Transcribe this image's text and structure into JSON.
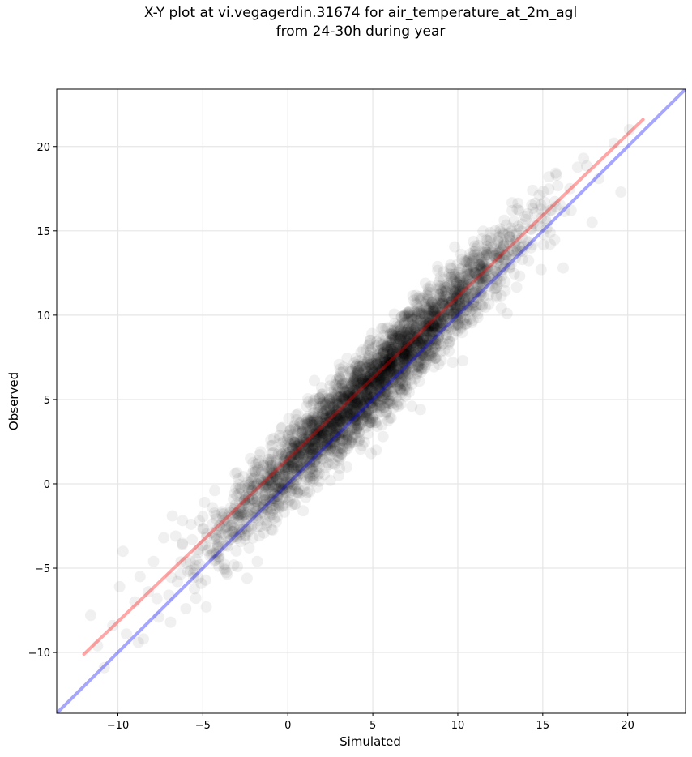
{
  "chart_data": {
    "type": "scatter",
    "title": "X-Y plot at vi.vegagerdin.31674 for air_temperature_at_2m_agl",
    "subtitle": "from 24-30h during year",
    "xlabel": "Simulated",
    "ylabel": "Observed",
    "xlim": [
      -13.6,
      23.4
    ],
    "ylim": [
      -13.6,
      23.4
    ],
    "xticks": [
      -10,
      -5,
      0,
      5,
      10,
      15,
      20
    ],
    "yticks": [
      -10,
      -5,
      0,
      5,
      10,
      15,
      20
    ],
    "xtick_labels": [
      "−10",
      "−5",
      "0",
      "5",
      "10",
      "15",
      "20"
    ],
    "ytick_labels": [
      "−10",
      "−5",
      "0",
      "5",
      "10",
      "15",
      "20"
    ],
    "grid": true,
    "legend": "none",
    "series": [
      {
        "kind": "points",
        "color": "#000000",
        "alpha": 0.06,
        "relation": "observed approx. simulated + 1.0, spread about 1.2",
        "x": [
          -11.6,
          -11.2,
          -10.8,
          -10.3,
          -9.9,
          -9.5,
          -9.0,
          -8.7,
          -8.5,
          -8.2,
          -7.9,
          -7.6,
          -7.3,
          -7.0,
          -6.8,
          -6.5,
          -6.2,
          -6.0,
          -5.7,
          -5.4,
          -5.1,
          -4.9,
          -4.6,
          -4.3,
          -4.0,
          -3.7,
          -3.4,
          -3.1,
          -2.8,
          -2.5,
          -2.2,
          -1.9,
          -1.6,
          -1.3,
          -1.0,
          -0.7,
          -0.4,
          -0.1,
          0.2,
          0.5,
          0.8,
          1.1,
          1.4,
          1.7,
          2.0,
          2.3,
          2.6,
          2.9,
          3.2,
          3.5,
          3.8,
          4.1,
          4.4,
          4.7,
          5.0,
          5.3,
          5.6,
          5.9,
          6.2,
          6.5,
          6.8,
          7.1,
          7.4,
          7.7,
          8.0,
          8.3,
          8.6,
          8.9,
          9.2,
          9.5,
          9.8,
          10.1,
          10.4,
          10.7,
          11.0,
          11.4,
          11.8,
          12.2,
          12.7,
          13.2,
          13.8,
          14.4,
          15.1,
          15.8,
          16.6,
          17.4,
          18.3,
          19.2,
          20.1,
          -8.8,
          -6.9,
          -4.8,
          -2.4,
          0.9,
          3.0,
          5.6,
          7.8,
          9.7,
          12.9,
          14.9,
          17.9,
          -6.6,
          -3.2,
          1.8,
          4.3,
          6.9,
          8.9,
          11.9,
          2.5,
          5.2,
          7.3,
          10.3,
          -0.5,
          3.7,
          6.1,
          8.4,
          13.6,
          -1.8,
          0.4,
          4.9,
          16.2,
          19.6,
          -9.7,
          -5.2,
          -2.9,
          1.5,
          2.8,
          4.0,
          5.8,
          6.4,
          7.6,
          8.1,
          9.0,
          10.0,
          10.9,
          11.5,
          -0.9,
          0.0,
          1.2,
          2.1,
          3.4,
          4.6,
          5.5,
          6.7,
          7.9,
          8.7,
          9.4,
          10.6,
          -3.6,
          -1.4,
          0.7,
          2.4,
          3.9,
          5.0,
          6.0,
          7.0,
          8.2,
          9.6,
          11.2,
          12.4
        ],
        "y": [
          -7.8,
          -9.6,
          -10.9,
          -8.4,
          -6.1,
          -8.9,
          -7.0,
          -5.5,
          -9.2,
          -6.4,
          -4.6,
          -7.9,
          -3.2,
          -6.6,
          -1.9,
          -5.8,
          -3.6,
          -7.4,
          -2.4,
          -4.5,
          -5.9,
          -1.1,
          -3.8,
          -0.4,
          -2.5,
          -5.1,
          -1.7,
          0.6,
          -3.0,
          -0.7,
          1.5,
          -1.9,
          1.9,
          -0.8,
          2.6,
          0.7,
          3.3,
          -0.5,
          1.3,
          3.8,
          2.0,
          4.6,
          0.9,
          3.1,
          5.3,
          2.4,
          4.1,
          6.2,
          3.0,
          5.6,
          3.9,
          6.7,
          4.8,
          6.3,
          5.1,
          7.5,
          5.9,
          8.2,
          6.4,
          8.9,
          7.2,
          9.3,
          7.8,
          10.4,
          8.5,
          10.1,
          9.4,
          11.6,
          10.2,
          11.0,
          12.3,
          11.4,
          13.2,
          12.0,
          14.1,
          12.8,
          13.6,
          15.0,
          14.3,
          16.2,
          15.4,
          17.4,
          16.7,
          18.3,
          17.5,
          19.3,
          18.1,
          20.2,
          21.0,
          -9.4,
          -8.2,
          -7.3,
          -5.6,
          -1.6,
          0.5,
          2.8,
          4.4,
          7.2,
          10.1,
          12.7,
          15.5,
          -3.1,
          -0.9,
          4.5,
          7.8,
          9.9,
          12.0,
          14.9,
          0.2,
          2.0,
          4.6,
          7.3,
          2.7,
          6.8,
          9.1,
          11.7,
          16.2,
          -4.6,
          -1.2,
          1.8,
          12.8,
          17.3,
          -4.0,
          -2.2,
          0.3,
          4.2,
          2.1,
          5.9,
          4.3,
          7.7,
          6.5,
          9.6,
          8.2,
          10.8,
          9.7,
          12.5,
          0.8,
          2.9,
          1.6,
          4.7,
          3.5,
          6.1,
          5.2,
          7.6,
          6.9,
          9.9,
          8.6,
          11.8,
          -2.0,
          0.1,
          2.4,
          3.6,
          5.0,
          6.3,
          7.1,
          8.4,
          9.1,
          10.6,
          12.2,
          13.7
        ]
      },
      {
        "name": "",
        "kind": "fit-line",
        "color": "#ff0000",
        "alpha": 0.35,
        "x": [
          -12.0,
          20.9
        ],
        "y": [
          -10.1,
          21.6
        ]
      },
      {
        "name": "",
        "kind": "identity-line",
        "color": "#0000ff",
        "alpha": 0.35,
        "x": [
          -13.6,
          23.4
        ],
        "y": [
          -13.6,
          23.4
        ]
      }
    ]
  }
}
